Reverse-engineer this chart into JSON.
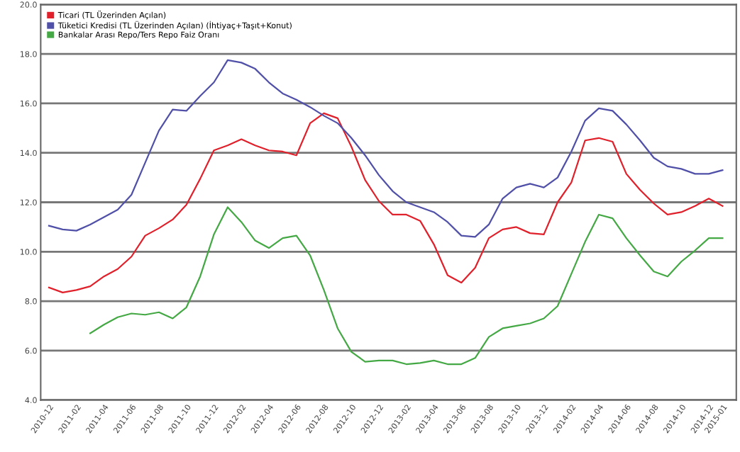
{
  "chart_data": {
    "type": "line",
    "categories": [
      "2010-12",
      null,
      "2011-02",
      null,
      "2011-04",
      null,
      "2011-06",
      null,
      "2011-08",
      null,
      "2011-10",
      null,
      "2011-12",
      null,
      "2012-02",
      null,
      "2012-04",
      null,
      "2012-06",
      null,
      "2012-08",
      null,
      "2012-10",
      null,
      "2012-12",
      null,
      "2013-02",
      null,
      "2013-04",
      null,
      "2013-06",
      null,
      "2013-08",
      null,
      "2013-10",
      null,
      "2013-12",
      null,
      "2014-02",
      null,
      "2014-04",
      null,
      "2014-06",
      null,
      "2014-08",
      null,
      "2014-10",
      null,
      "2014-12",
      "2015-01"
    ],
    "series": [
      {
        "name": "Ticari (TL Üzerinden Açılan)",
        "color": "#e0202a",
        "values": [
          8.55,
          8.35,
          8.45,
          8.6,
          9.0,
          9.3,
          9.8,
          10.65,
          10.95,
          11.3,
          11.9,
          12.95,
          14.1,
          14.3,
          14.55,
          14.3,
          14.1,
          14.05,
          13.9,
          15.2,
          15.6,
          15.4,
          14.25,
          12.9,
          12.05,
          11.5,
          11.5,
          11.25,
          10.3,
          9.05,
          8.75,
          9.35,
          10.55,
          10.9,
          11.0,
          10.75,
          10.7,
          12.0,
          12.8,
          14.5,
          14.6,
          14.45,
          13.15,
          12.5,
          11.95,
          11.5,
          11.6,
          11.85,
          12.15,
          11.85
        ]
      },
      {
        "name": "Tüketici Kredisi (TL Üzerinden Açılan) (İhtiyaç+Taşıt+Konut)",
        "color": "#5050a8",
        "values": [
          11.05,
          10.9,
          10.85,
          11.1,
          11.4,
          11.7,
          12.3,
          13.6,
          14.9,
          15.75,
          15.7,
          16.3,
          16.85,
          17.75,
          17.65,
          17.4,
          16.85,
          16.4,
          16.15,
          15.85,
          15.5,
          15.2,
          14.6,
          13.9,
          13.1,
          12.45,
          12.0,
          11.8,
          11.6,
          11.2,
          10.65,
          10.6,
          11.1,
          12.15,
          12.6,
          12.75,
          12.6,
          13.0,
          14.05,
          15.3,
          15.8,
          15.7,
          15.15,
          14.5,
          13.8,
          13.45,
          13.35,
          13.15,
          13.15,
          13.3
        ]
      },
      {
        "name": "Bankalar Arası Repo/Ters Repo Faiz Oranı",
        "color": "#44a844",
        "values": [
          null,
          null,
          null,
          6.7,
          7.05,
          7.35,
          7.5,
          7.45,
          7.55,
          7.3,
          7.75,
          9.0,
          10.7,
          11.8,
          11.2,
          10.45,
          10.15,
          10.55,
          10.65,
          9.85,
          8.45,
          6.9,
          5.95,
          5.55,
          5.6,
          5.6,
          5.45,
          5.5,
          5.6,
          5.45,
          5.45,
          5.7,
          6.55,
          6.9,
          7.0,
          7.1,
          7.3,
          7.8,
          9.1,
          10.4,
          11.5,
          11.35,
          10.55,
          9.85,
          9.2,
          9.0,
          9.6,
          10.05,
          10.55,
          10.55
        ]
      }
    ],
    "ylim": [
      4,
      20
    ],
    "yticks": [
      {
        "value": 4,
        "label": "4.0"
      },
      {
        "value": 6,
        "label": "6.0"
      },
      {
        "value": 8,
        "label": "8.0"
      },
      {
        "value": 10,
        "label": "10.0"
      },
      {
        "value": 12,
        "label": "12.0"
      },
      {
        "value": 14,
        "label": "14.0"
      },
      {
        "value": 16,
        "label": "16.0"
      },
      {
        "value": 18,
        "label": "18.0"
      },
      {
        "value": 20,
        "label": "20.0"
      }
    ],
    "grid": "y",
    "legend": "top left",
    "marker": "none",
    "line_style": "solid"
  }
}
